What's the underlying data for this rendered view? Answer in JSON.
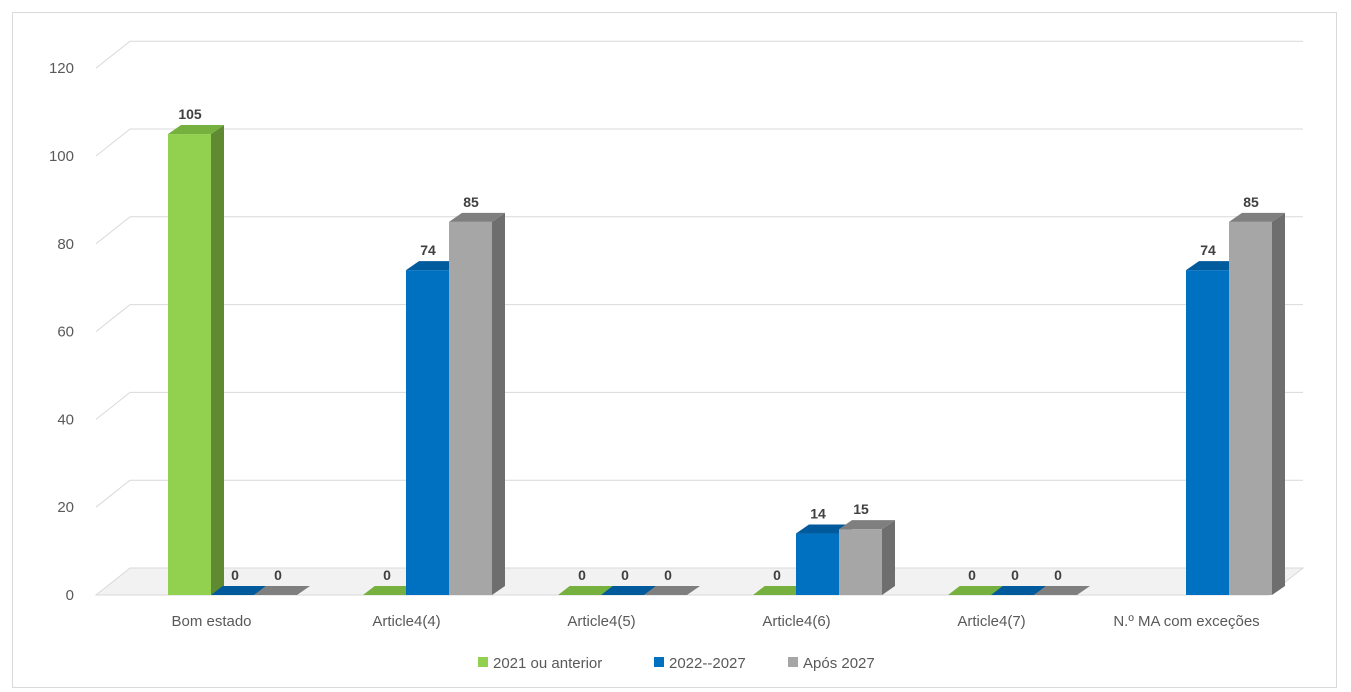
{
  "chart_data": {
    "type": "bar",
    "categories": [
      "Bom estado",
      "Article4(4)",
      "Article4(5)",
      "Article4(6)",
      "Article4(7)",
      "N.º MA com exceções"
    ],
    "series": [
      {
        "name": "2021 ou anterior",
        "values": [
          105,
          0,
          0,
          0,
          0,
          null
        ],
        "color": "#92d050",
        "side_color": "#5f8a32",
        "top_color": "#76b03e"
      },
      {
        "name": "2022--2027",
        "values": [
          0,
          74,
          0,
          14,
          0,
          74
        ],
        "color": "#0070c0",
        "side_color": "#004a80",
        "top_color": "#005a9c"
      },
      {
        "name": "Após 2027",
        "values": [
          0,
          85,
          0,
          15,
          0,
          85
        ],
        "color": "#a6a6a6",
        "side_color": "#6e6e6e",
        "top_color": "#7f7f7f"
      }
    ],
    "title": "",
    "xlabel": "",
    "ylabel": "",
    "ylim": [
      0,
      120
    ],
    "yticks": [
      "0",
      "20",
      "40",
      "60",
      "80",
      "100",
      "120"
    ],
    "grid": true,
    "legend_position": "bottom",
    "style": "3d-clustered-column"
  }
}
